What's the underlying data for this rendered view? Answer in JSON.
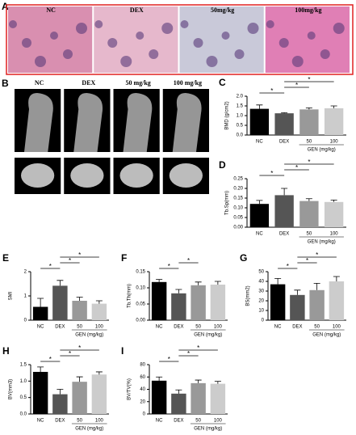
{
  "chart_data": [
    {
      "type": "image",
      "panel": "A",
      "labels": [
        "NC",
        "DEX",
        "50mg/kg",
        "100mg/kg"
      ]
    },
    {
      "type": "image",
      "panel": "B",
      "labels": [
        "NC",
        "DEX",
        "50 mg/kg",
        "100 mg/kg"
      ]
    },
    {
      "type": "bar",
      "panel": "C",
      "ylabel": "BMD (g/cm2)",
      "categories": [
        "NC",
        "DEX",
        "50",
        "100"
      ],
      "xlabel": "GEN (mg/kg)",
      "values": [
        1.35,
        1.12,
        1.32,
        1.38
      ],
      "errors": [
        0.2,
        0.03,
        0.08,
        0.12
      ],
      "colors": [
        "#000000",
        "#555555",
        "#999999",
        "#cccccc"
      ],
      "ylim": [
        0,
        2
      ],
      "yticks": [
        {
          "value": 0,
          "label": "0.0"
        },
        0.5,
        {
          "value": 1,
          "label": "1.0"
        },
        1.5,
        {
          "value": 2,
          "label": "2.0"
        }
      ],
      "annotations": [
        "*",
        "*",
        "*"
      ]
    },
    {
      "type": "bar",
      "panel": "D",
      "ylabel": "Tb.Sp(mm)",
      "categories": [
        "NC",
        "DEX",
        "50",
        "100"
      ],
      "xlabel": "GEN (mg/kg)",
      "values": [
        0.12,
        0.165,
        0.135,
        0.13
      ],
      "errors": [
        0.018,
        0.035,
        0.012,
        0.01
      ],
      "colors": [
        "#000000",
        "#555555",
        "#999999",
        "#cccccc"
      ],
      "ylim": [
        0,
        0.25
      ],
      "yticks": [
        {
          "value": 0,
          "label": "0.00"
        },
        0.05,
        {
          "value": 0.1,
          "label": "0.10"
        },
        0.15,
        {
          "value": 0.2,
          "label": "0.20"
        },
        0.25
      ],
      "annotations": [
        "*",
        "*",
        "*"
      ]
    },
    {
      "type": "bar",
      "panel": "E",
      "ylabel": "SMI",
      "categories": [
        "NC",
        "DEX",
        "50",
        "100"
      ],
      "xlabel": "GEN (mg/kg)",
      "values": [
        0.55,
        1.42,
        0.8,
        0.68
      ],
      "errors": [
        0.35,
        0.22,
        0.15,
        0.12
      ],
      "colors": [
        "#000000",
        "#555555",
        "#999999",
        "#cccccc"
      ],
      "ylim": [
        0,
        2
      ],
      "yticks": [
        0,
        1,
        2
      ],
      "annotations": [
        "*",
        "*",
        "*"
      ]
    },
    {
      "type": "bar",
      "panel": "F",
      "ylabel": "Tb.Th(mm)",
      "categories": [
        "NC",
        "DEX",
        "50",
        "100"
      ],
      "xlabel": "GEN (mg/kg)",
      "values": [
        0.118,
        0.083,
        0.108,
        0.11
      ],
      "errors": [
        0.008,
        0.012,
        0.01,
        0.01
      ],
      "colors": [
        "#000000",
        "#555555",
        "#999999",
        "#cccccc"
      ],
      "ylim": [
        0,
        0.15
      ],
      "yticks": [
        {
          "value": 0,
          "label": "0.00"
        },
        0.05,
        {
          "value": 0.1,
          "label": "0.10"
        },
        0.15
      ],
      "annotations": [
        "*",
        "*"
      ]
    },
    {
      "type": "bar",
      "panel": "G",
      "ylabel": "BS(mm2)",
      "categories": [
        "NC",
        "DEX",
        "50",
        "100"
      ],
      "xlabel": "GEN (mg/kg)",
      "values": [
        37,
        26,
        31,
        40
      ],
      "errors": [
        6,
        5,
        7,
        5
      ],
      "colors": [
        "#000000",
        "#555555",
        "#999999",
        "#cccccc"
      ],
      "ylim": [
        0,
        50
      ],
      "yticks": [
        0,
        10,
        20,
        30,
        40,
        50
      ],
      "annotations": [
        "*",
        "*",
        "*"
      ]
    },
    {
      "type": "bar",
      "panel": "H",
      "ylabel": "BV(mm3)",
      "categories": [
        "NC",
        "DEX",
        "50",
        "100"
      ],
      "xlabel": "GEN (mg/kg)",
      "values": [
        1.28,
        0.6,
        0.98,
        1.2
      ],
      "errors": [
        0.15,
        0.15,
        0.15,
        0.08
      ],
      "colors": [
        "#000000",
        "#555555",
        "#999999",
        "#cccccc"
      ],
      "ylim": [
        0,
        1.5
      ],
      "yticks": [
        {
          "value": 0,
          "label": "0.0"
        },
        0.5,
        {
          "value": 1,
          "label": "1.0"
        },
        1.5
      ],
      "annotations": [
        "*",
        "*",
        "*"
      ]
    },
    {
      "type": "bar",
      "panel": "I",
      "ylabel": "BV/TV(%)",
      "categories": [
        "NC",
        "DEX",
        "50",
        "100"
      ],
      "xlabel": "GEN (mg/kg)",
      "values": [
        54,
        33,
        50,
        49
      ],
      "errors": [
        6,
        6,
        5,
        4
      ],
      "colors": [
        "#000000",
        "#555555",
        "#999999",
        "#cccccc"
      ],
      "ylim": [
        0,
        80
      ],
      "yticks": [
        0,
        20,
        40,
        60,
        80
      ],
      "annotations": [
        "*",
        "*",
        "*"
      ]
    }
  ]
}
